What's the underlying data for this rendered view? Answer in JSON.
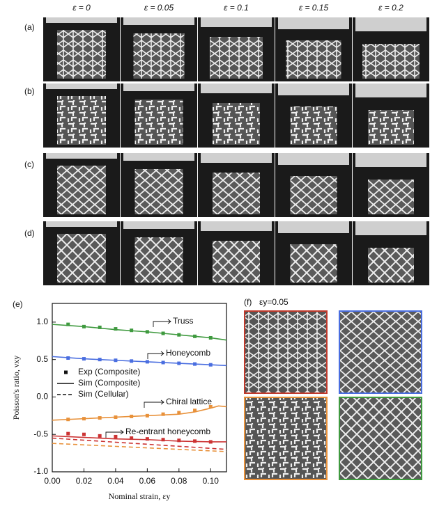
{
  "column_headers": [
    "ε = 0",
    "ε = 0.05",
    "ε = 0.1",
    "ε = 0.15",
    "ε = 0.2"
  ],
  "row_labels": [
    "(a)",
    "(b)",
    "(c)",
    "(d)"
  ],
  "chart_label": "(e)",
  "panel_f": {
    "label": "(f)",
    "title": "εy=0.05"
  },
  "chart_data": {
    "type": "line",
    "xlabel": "Nominal strain, εy",
    "ylabel": "Poisson's ratio, νxy",
    "xlim": [
      0,
      0.11
    ],
    "ylim": [
      -1.0,
      1.25
    ],
    "xticks": [
      {
        "value": 0,
        "label": "0.00"
      },
      {
        "value": 0.02,
        "label": "0.02"
      },
      {
        "value": 0.04,
        "label": "0.04"
      },
      {
        "value": 0.06,
        "label": "0.06"
      },
      {
        "value": 0.08,
        "label": "0.08"
      },
      {
        "value": 0.1,
        "label": "0.10"
      }
    ],
    "yticks": [
      {
        "value": -1,
        "label": "-1.0"
      },
      {
        "value": -0.5,
        "label": "-0.5"
      },
      {
        "value": 0,
        "label": "0.0"
      },
      {
        "value": 0.5,
        "label": "0.5"
      },
      {
        "value": 1,
        "label": "1.0"
      }
    ],
    "legend": [
      "Exp (Composite)",
      "Sim (Composite)",
      "Sim (Cellular)"
    ],
    "exp_x": [
      0.01,
      0.02,
      0.03,
      0.04,
      0.05,
      0.06,
      0.07,
      0.08,
      0.09,
      0.1
    ],
    "lattices": [
      {
        "label": "Truss",
        "color": "#3f9a3f",
        "exp": [
          0.97,
          0.94,
          0.93,
          0.91,
          0.89,
          0.87,
          0.85,
          0.83,
          0.81,
          0.79
        ],
        "sim_x": [
          0,
          0.02,
          0.04,
          0.06,
          0.08,
          0.1,
          0.11
        ],
        "sim": [
          0.97,
          0.94,
          0.9,
          0.87,
          0.83,
          0.79,
          0.76
        ]
      },
      {
        "label": "Honeycomb",
        "color": "#4a6ee0",
        "exp": [
          0.52,
          0.51,
          0.5,
          0.49,
          0.48,
          0.47,
          0.46,
          0.45,
          0.44,
          0.43
        ],
        "sim_x": [
          0,
          0.02,
          0.04,
          0.06,
          0.08,
          0.1,
          0.11
        ],
        "sim": [
          0.54,
          0.51,
          0.49,
          0.47,
          0.45,
          0.43,
          0.42
        ]
      },
      {
        "label": "Chiral lattice",
        "color": "#e8913a",
        "exp": [
          -0.3,
          -0.29,
          -0.28,
          -0.27,
          -0.26,
          -0.25,
          -0.23,
          -0.21,
          -0.18,
          -0.13
        ],
        "sim_x": [
          0,
          0.02,
          0.04,
          0.06,
          0.08,
          0.09,
          0.1,
          0.105,
          0.11
        ],
        "sim": [
          -0.31,
          -0.29,
          -0.27,
          -0.25,
          -0.23,
          -0.2,
          -0.15,
          -0.12,
          -0.13
        ],
        "cellular_x": [
          0,
          0.11
        ],
        "cellular": [
          -0.62,
          -0.73
        ]
      },
      {
        "label": "Re-entrant honeycomb",
        "color": "#cc3333",
        "exp": [
          -0.49,
          -0.5,
          -0.52,
          -0.53,
          -0.55,
          -0.56,
          -0.57,
          -0.58,
          -0.59,
          -0.6
        ],
        "sim_x": [
          0,
          0.02,
          0.04,
          0.06,
          0.08,
          0.1,
          0.11
        ],
        "sim": [
          -0.52,
          -0.54,
          -0.56,
          -0.57,
          -0.59,
          -0.6,
          -0.6
        ],
        "cellular_x": [
          0,
          0.11
        ],
        "cellular": [
          -0.55,
          -0.7
        ]
      }
    ]
  }
}
